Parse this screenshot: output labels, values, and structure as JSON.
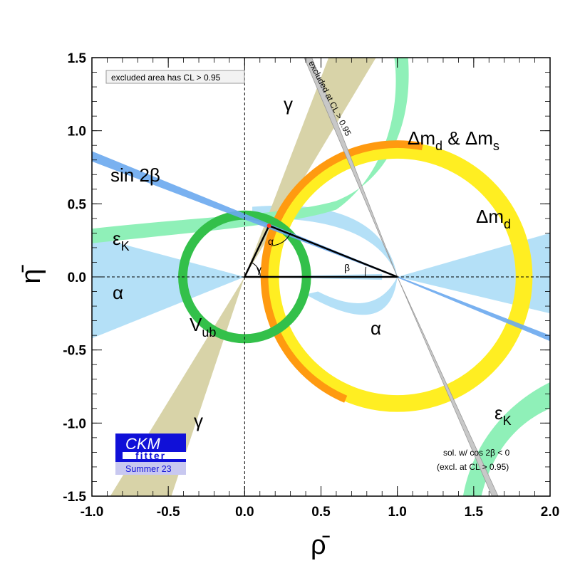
{
  "chart_data": {
    "type": "scatter",
    "title": "",
    "xlabel": "ρ̄",
    "ylabel": "η̄",
    "xlim": [
      -1.0,
      2.0
    ],
    "ylim": [
      -1.5,
      1.5
    ],
    "x_ticks": [
      "-1.0",
      "-0.5",
      "0.0",
      "0.5",
      "1.0",
      "1.5",
      "2.0"
    ],
    "y_ticks": [
      "1.5",
      "1.0",
      "0.5",
      "0.0",
      "-0.5",
      "-1.0",
      "-1.5"
    ],
    "apex": {
      "rho": 0.16,
      "eta": 0.35
    },
    "constraints": [
      {
        "name": "sin 2β",
        "color": "#6aa8ee"
      },
      {
        "name": "α",
        "color": "#b4e0f7"
      },
      {
        "name": "γ",
        "color": "#d8d3a8"
      },
      {
        "name": "Δm_d",
        "color": "#ffee22"
      },
      {
        "name": "Δm_d & Δm_s",
        "color": "#ff9a10"
      },
      {
        "name": "ε_K",
        "color": "#8ff0b8"
      },
      {
        "name": "V_ub",
        "color": "#33c04a"
      }
    ],
    "grid": false
  },
  "labels": {
    "sin2beta": "sin 2β",
    "alpha": "α",
    "gamma": "γ",
    "epsK_main": "ε",
    "epsK_sub": "K",
    "vub_main": "V",
    "vub_sub": "ub",
    "dmd_main": "Δm",
    "dmd_sub": "d",
    "dmds_amp": " & Δm",
    "dmds_sub": "s",
    "tri_alpha": "α",
    "tri_beta": "β",
    "tri_gamma": "γ"
  },
  "notes": {
    "excluded_box": "excluded area has CL > 0.95",
    "excluded_rotated": "excluded at CL > 0.95",
    "sol_line1": "sol. w/ cos 2β < 0",
    "sol_line2": "(excl. at CL > 0.95)"
  },
  "logo": {
    "line1": "CKM",
    "line2": "fitter",
    "line3": "Summer 23",
    "color_dark": "#1010d8",
    "color_light": "#c8c8f0"
  }
}
